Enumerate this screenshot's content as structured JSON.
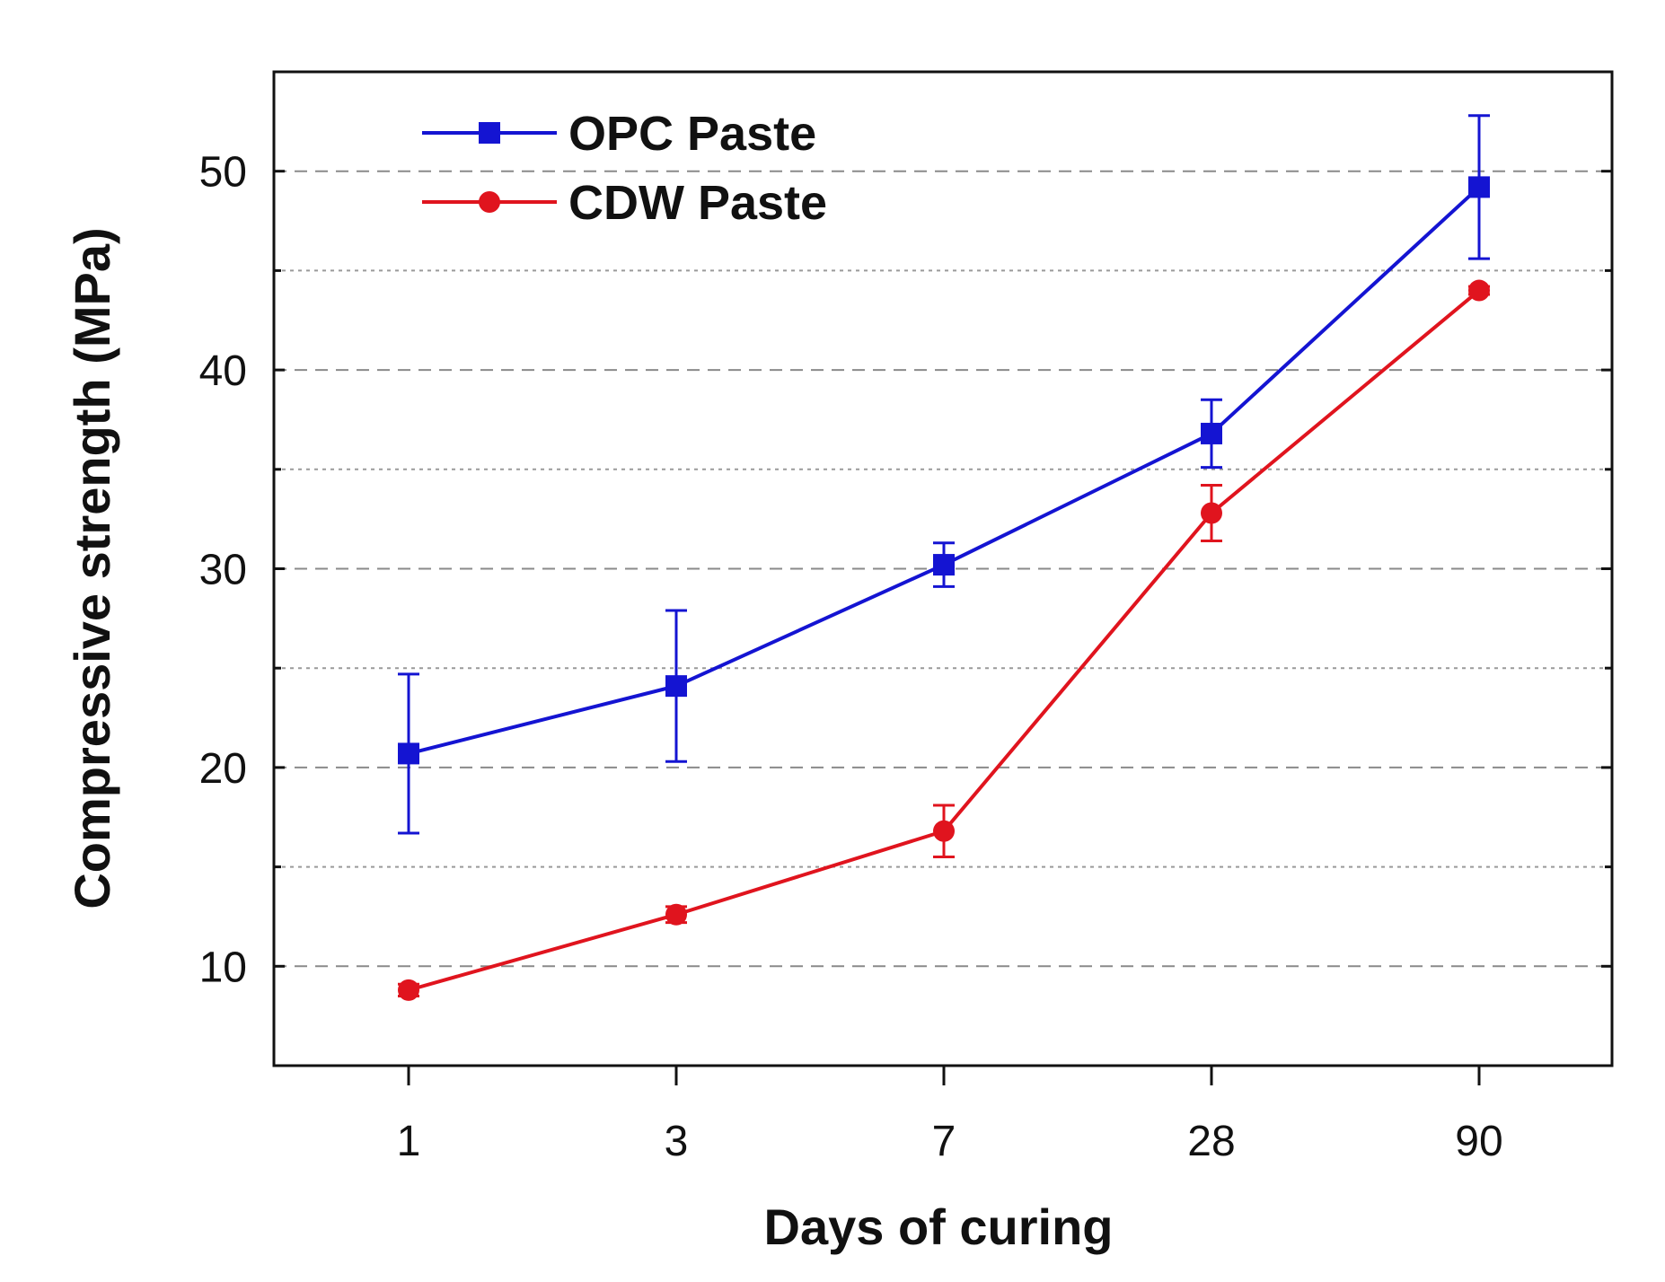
{
  "chart_data": {
    "type": "line",
    "title": "",
    "xlabel": "Days of curing",
    "ylabel": "Compressive strength (MPa)",
    "categories": [
      "1",
      "3",
      "7",
      "28",
      "90"
    ],
    "ylim": [
      5,
      55
    ],
    "yticks": [
      10,
      20,
      30,
      40,
      50
    ],
    "major_grid": [
      10,
      20,
      30,
      40,
      50
    ],
    "minor_grid": [
      15,
      25,
      35,
      45
    ],
    "legend_position": "top-left",
    "series": [
      {
        "name": "OPC Paste",
        "color": "#1414d2",
        "marker": "square",
        "values": [
          20.7,
          24.1,
          30.2,
          36.8,
          49.2
        ],
        "errors": [
          4.0,
          3.8,
          1.1,
          1.7,
          3.6
        ]
      },
      {
        "name": "CDW Paste",
        "color": "#e0141e",
        "marker": "circle",
        "values": [
          8.8,
          12.6,
          16.8,
          32.8,
          44.0
        ],
        "errors": [
          0.3,
          0.4,
          1.3,
          1.4,
          0.2
        ]
      }
    ]
  }
}
